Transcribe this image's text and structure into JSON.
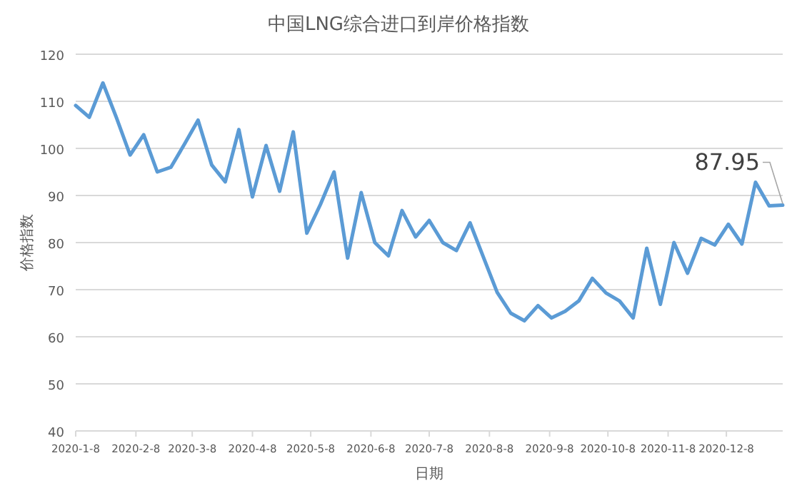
{
  "chart_data": {
    "type": "line",
    "title": "中国LNG综合进口到岸价格指数",
    "xlabel": "日期",
    "ylabel": "价格指数",
    "x": [
      "2020-01-08",
      "2020-01-15",
      "2020-01-22",
      "2020-01-29",
      "2020-02-05",
      "2020-02-12",
      "2020-02-19",
      "2020-02-26",
      "2020-03-04",
      "2020-03-11",
      "2020-03-18",
      "2020-03-25",
      "2020-04-01",
      "2020-04-08",
      "2020-04-15",
      "2020-04-22",
      "2020-04-29",
      "2020-05-06",
      "2020-05-13",
      "2020-05-20",
      "2020-05-27",
      "2020-06-03",
      "2020-06-10",
      "2020-06-17",
      "2020-06-24",
      "2020-07-01",
      "2020-07-08",
      "2020-07-15",
      "2020-07-22",
      "2020-07-29",
      "2020-08-05",
      "2020-08-12",
      "2020-08-19",
      "2020-08-26",
      "2020-09-02",
      "2020-09-09",
      "2020-09-16",
      "2020-09-23",
      "2020-09-30",
      "2020-10-07",
      "2020-10-14",
      "2020-10-21",
      "2020-10-28",
      "2020-11-04",
      "2020-11-11",
      "2020-11-18",
      "2020-11-25",
      "2020-12-02",
      "2020-12-09",
      "2020-12-16",
      "2020-12-23",
      "2020-12-30",
      "2021-01-06"
    ],
    "values": [
      109.1,
      106.6,
      113.9,
      106.5,
      98.6,
      102.9,
      95,
      96,
      100.9,
      106,
      96.5,
      92.9,
      104,
      89.7,
      100.6,
      90.9,
      103.5,
      82,
      88.1,
      95,
      76.7,
      90.6,
      80,
      77.2,
      86.8,
      81.2,
      84.7,
      80,
      78.3,
      84.2,
      76.8,
      69.4,
      65,
      63.4,
      66.6,
      64,
      65.4,
      67.6,
      72.4,
      69.3,
      67.6,
      64,
      78.8,
      66.9,
      80,
      73.5,
      80.9,
      79.5,
      83.9,
      79.7,
      92.8,
      87.8,
      87.95
    ],
    "color": "#5b9bd5",
    "line_style": "solid",
    "marker": "none",
    "grid": "y",
    "ylim": [
      40,
      120
    ],
    "yticks": [
      40,
      50,
      60,
      70,
      80,
      90,
      100,
      110,
      120
    ],
    "xlim": [
      "2020-01-08",
      "2021-01-06"
    ],
    "xticks": [
      {
        "value": "2020-01-08",
        "label": "2020-1-8"
      },
      {
        "value": "2020-02-08",
        "label": "2020-2-8"
      },
      {
        "value": "2020-03-08",
        "label": "2020-3-8"
      },
      {
        "value": "2020-04-08",
        "label": "2020-4-8"
      },
      {
        "value": "2020-05-08",
        "label": "2020-5-8"
      },
      {
        "value": "2020-06-08",
        "label": "2020-6-8"
      },
      {
        "value": "2020-07-08",
        "label": "2020-7-8"
      },
      {
        "value": "2020-08-08",
        "label": "2020-8-8"
      },
      {
        "value": "2020-09-08",
        "label": "2020-9-8"
      },
      {
        "value": "2020-10-08",
        "label": "2020-10-8"
      },
      {
        "value": "2020-11-08",
        "label": "2020-11-8"
      },
      {
        "value": "2020-12-08",
        "label": "2020-12-8"
      }
    ],
    "annotations": [
      {
        "text": "87.95",
        "x": "2021-01-06",
        "y": 87.95
      }
    ]
  }
}
